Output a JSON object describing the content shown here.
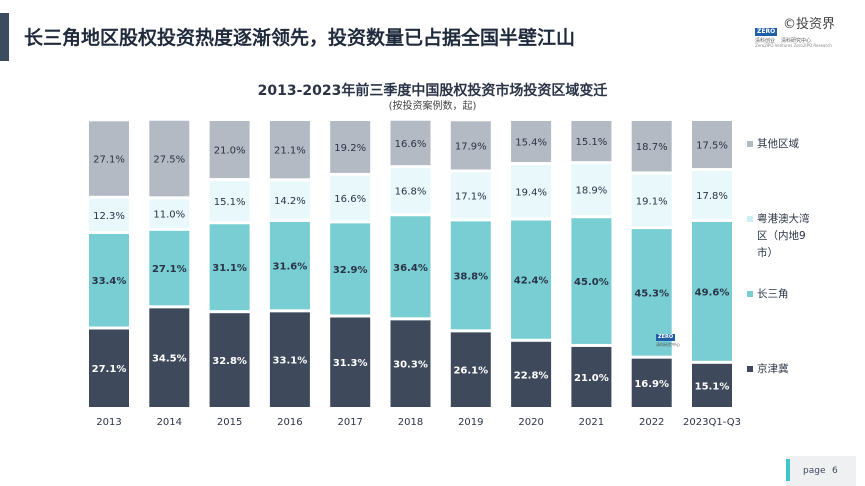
{
  "header": {
    "title": "长三角地区股权投资热度逐渐领先，投资数量已占据全国半壁江山"
  },
  "logo": {
    "zero_text": "ZERO",
    "cn_left": "清科创业",
    "cn_right": "清科研究中心",
    "en_text": "Zero2IPO Ventures  Zero2IPO Research"
  },
  "watermark_top": "©投资界",
  "watermark_mid": {
    "zero_text": "ZERO",
    "cn_text": "清科研究中心"
  },
  "footer": {
    "page_label": "page",
    "page_number": "6"
  },
  "chart_data": {
    "type": "bar",
    "stacked": true,
    "percent_stacked": true,
    "title": "2013-2023年前三季度中国股权投资市场投资区域变迁",
    "subtitle": "(按投资案例数，起)",
    "categories": [
      "2013",
      "2014",
      "2015",
      "2016",
      "2017",
      "2018",
      "2019",
      "2020",
      "2021",
      "2022",
      "2023Q1-Q3"
    ],
    "ylim": [
      0,
      100
    ],
    "grid": false,
    "legend_position": "right",
    "series": [
      {
        "name": "京津冀",
        "color": "#3e4a5c",
        "label_color": "#ffffff",
        "values": [
          27.1,
          34.5,
          32.8,
          33.1,
          31.3,
          30.3,
          26.1,
          22.8,
          21.0,
          16.9,
          15.1
        ],
        "labels": [
          "27.1%",
          "34.5%",
          "32.8%",
          "33.1%",
          "31.3%",
          "30.3%",
          "26.1%",
          "22.8%",
          "21.0%",
          "16.9%",
          "15.1%"
        ]
      },
      {
        "name": "长三角",
        "color": "#78ced2",
        "label_color": "#2b3447",
        "values": [
          33.4,
          27.1,
          31.1,
          31.6,
          32.9,
          36.4,
          38.8,
          42.4,
          45.0,
          45.3,
          49.6
        ],
        "labels": [
          "33.4%",
          "27.1%",
          "31.1%",
          "31.6%",
          "32.9%",
          "36.4%",
          "38.8%",
          "42.4%",
          "45.0%",
          "45.3%",
          "49.6%"
        ]
      },
      {
        "name": "粤港澳大湾区（内地9市）",
        "legend_lines": [
          "粤港澳大湾",
          "区（内地9",
          "市）"
        ],
        "color": "#e8f8fb",
        "label_color": "#2b3447",
        "values": [
          12.3,
          11.0,
          15.1,
          14.2,
          16.6,
          16.8,
          17.1,
          19.4,
          18.9,
          19.1,
          17.8
        ],
        "labels": [
          "12.3%",
          "11.0%",
          "15.1%",
          "14.2%",
          "16.6%",
          "16.8%",
          "17.1%",
          "19.4%",
          "18.9%",
          "19.1%",
          "17.8%"
        ]
      },
      {
        "name": "其他区域",
        "color": "#b3bac4",
        "label_color": "#2b3447",
        "values": [
          27.1,
          27.5,
          21.0,
          21.1,
          19.2,
          16.6,
          17.9,
          15.4,
          15.1,
          18.7,
          17.5
        ],
        "labels": [
          "27.1%",
          "27.5%",
          "21.0%",
          "21.1%",
          "19.2%",
          "16.6%",
          "17.9%",
          "15.4%",
          "15.1%",
          "18.7%",
          "17.5%"
        ]
      }
    ]
  }
}
